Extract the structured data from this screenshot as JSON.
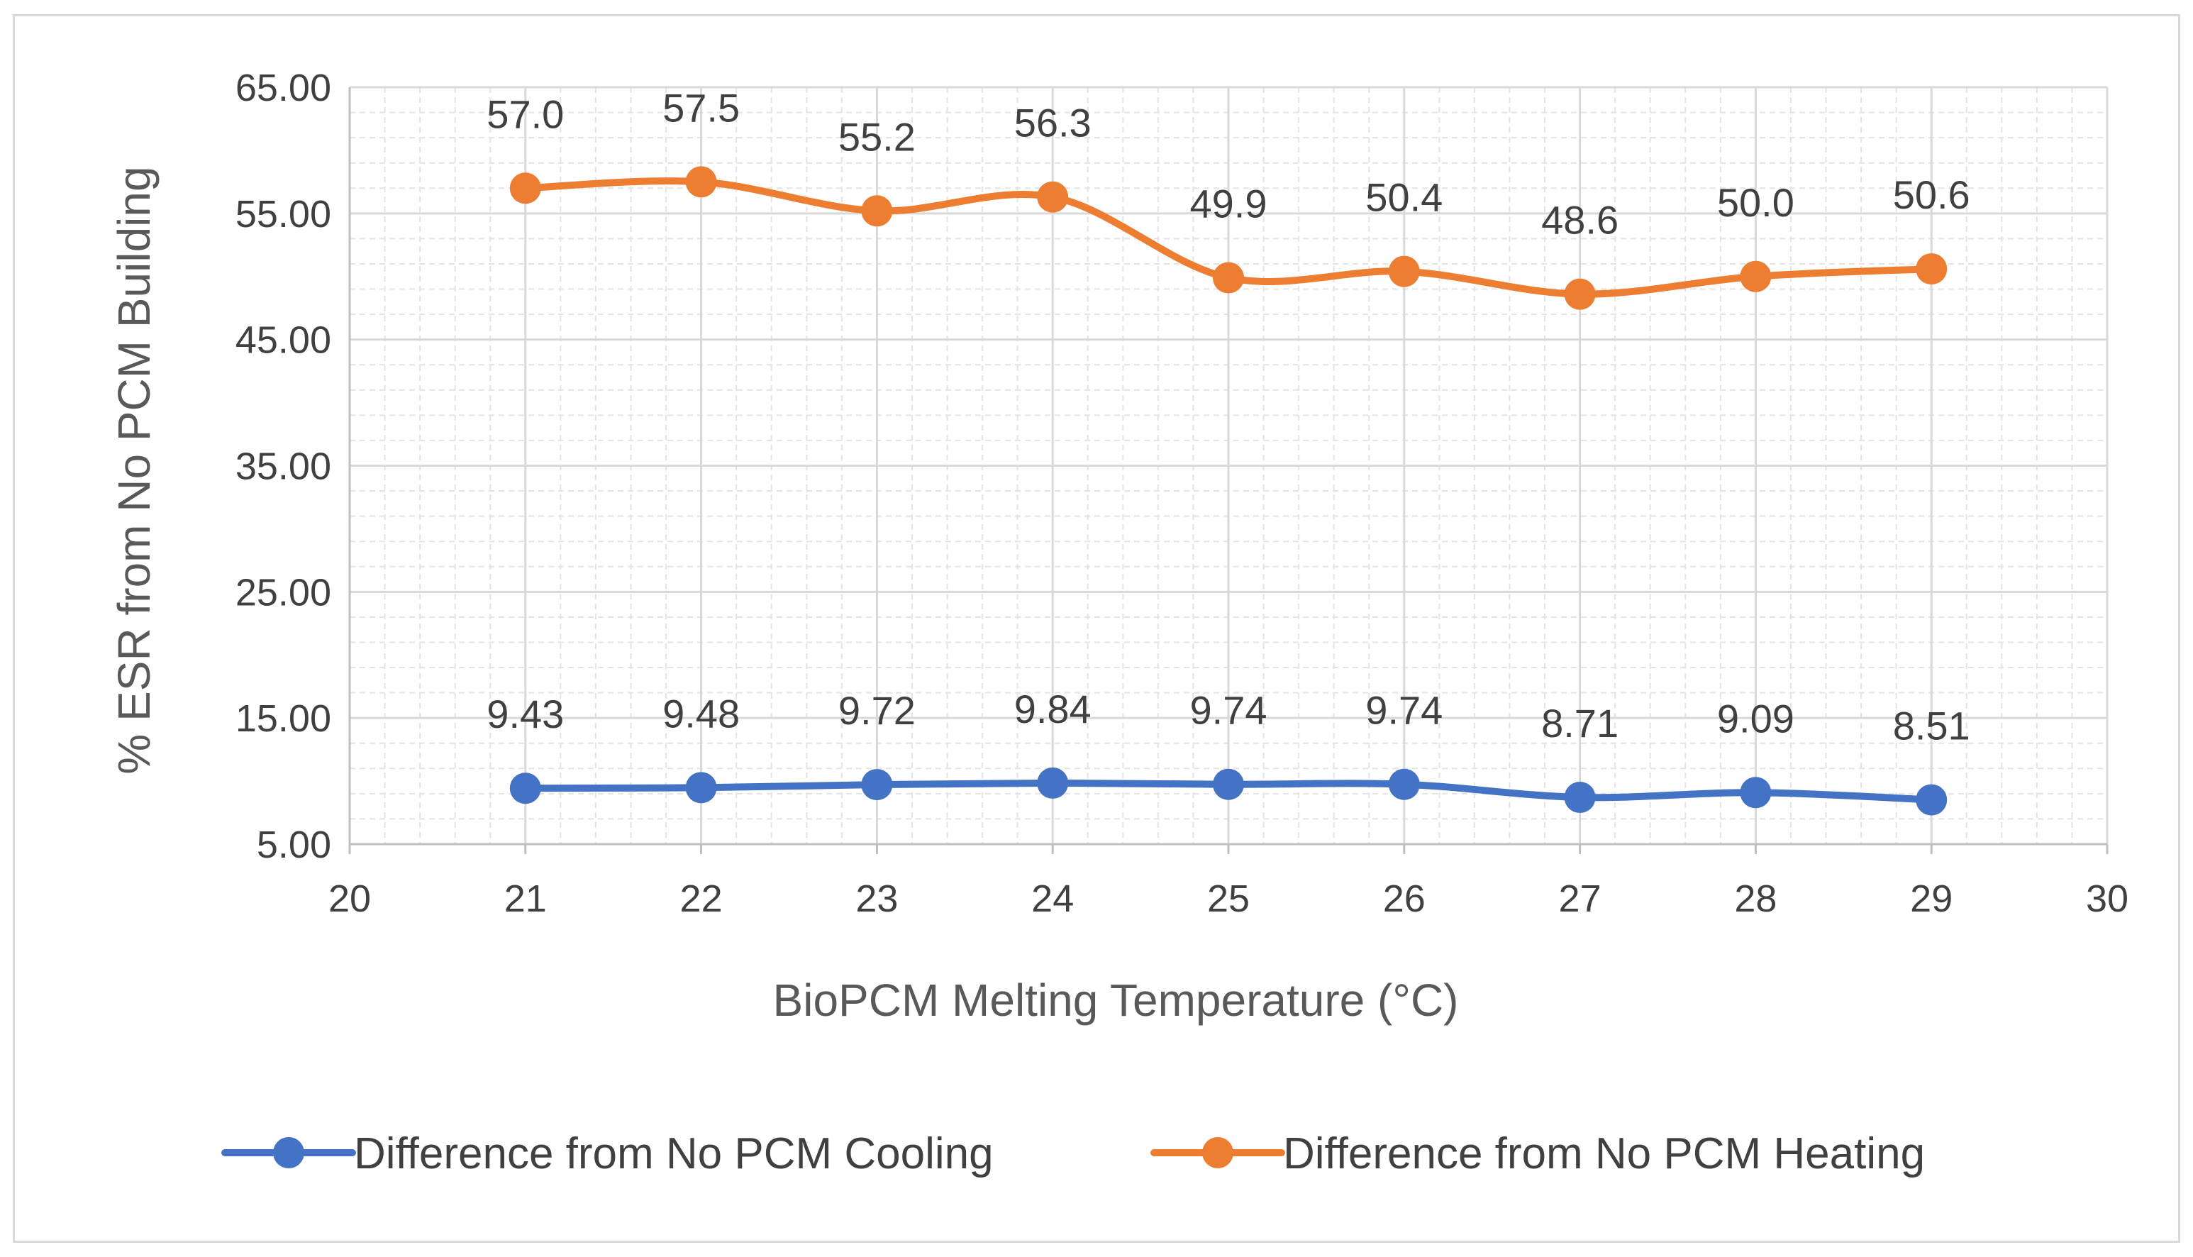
{
  "chart_data": {
    "type": "line",
    "title": "",
    "xlabel": "BioPCM Melting Temperature (°C)",
    "ylabel": "% ESR from No PCM Building",
    "xlim": [
      20,
      30
    ],
    "ylim": [
      5,
      65
    ],
    "x_ticks": [
      "20",
      "21",
      "22",
      "23",
      "24",
      "25",
      "26",
      "27",
      "28",
      "29",
      "30"
    ],
    "y_ticks": [
      "5.00",
      "15.00",
      "25.00",
      "35.00",
      "45.00",
      "55.00",
      "65.00"
    ],
    "x": [
      21,
      22,
      23,
      24,
      25,
      26,
      27,
      28,
      29
    ],
    "grid": true,
    "legend_position": "bottom",
    "series": [
      {
        "name": "Difference from No PCM Cooling",
        "color": "#4472c4",
        "values": [
          9.43,
          9.48,
          9.72,
          9.84,
          9.74,
          9.74,
          8.71,
          9.09,
          8.51
        ],
        "labels": [
          "9.43",
          "9.48",
          "9.72",
          "9.84",
          "9.74",
          "9.74",
          "8.71",
          "9.09",
          "8.51"
        ]
      },
      {
        "name": "Difference from No PCM Heating",
        "color": "#ed7d31",
        "values": [
          57.0,
          57.5,
          55.2,
          56.3,
          49.9,
          50.4,
          48.6,
          50.0,
          50.6
        ],
        "labels": [
          "57.0",
          "57.5",
          "55.2",
          "56.3",
          "49.9",
          "50.4",
          "48.6",
          "50.0",
          "50.6"
        ]
      }
    ]
  }
}
